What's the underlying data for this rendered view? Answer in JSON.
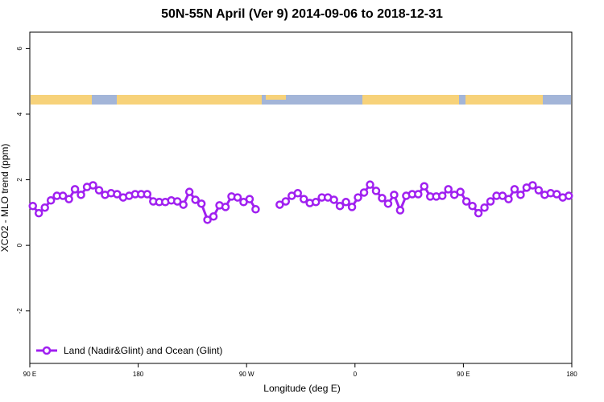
{
  "chart_data": {
    "type": "line",
    "title": "50N-55N April (Ver 9)   2014-09-06 to 2018-12-31",
    "x_label": "Longitude (deg E)",
    "y_label": "XCO2 - MLO trend (ppm)",
    "xlim": [
      90,
      540
    ],
    "ylim": [
      -3.6,
      6.5
    ],
    "xticks": [
      {
        "value": 90,
        "label": "90 E"
      },
      180,
      {
        "value": 270,
        "label": "90 W"
      },
      {
        "value": 360,
        "label": "0"
      },
      {
        "value": 450,
        "label": "90 E"
      },
      {
        "value": 540,
        "label": "180"
      }
    ],
    "yticks": [
      -2,
      0,
      2,
      4,
      6
    ],
    "legend": "bottom left",
    "x": [
      92.5,
      97.5,
      102.5,
      107.5,
      112.5,
      117.5,
      122.5,
      127.5,
      132.5,
      137.5,
      142.5,
      147.5,
      152.5,
      157.5,
      162.5,
      167.5,
      172.5,
      177.5,
      182.5,
      187.5,
      192.5,
      197.5,
      202.5,
      207.5,
      212.5,
      217.5,
      222.5,
      227.5,
      232.5,
      237.5,
      242.5,
      247.5,
      252.5,
      257.5,
      262.5,
      267.5,
      272.5,
      277.5,
      282.5,
      287.5,
      292.5,
      297.5,
      302.5,
      307.5,
      312.5,
      317.5,
      322.5,
      327.5,
      332.5,
      337.5,
      342.5,
      347.5,
      352.5,
      357.5,
      362.5,
      367.5,
      372.5,
      377.5,
      382.5,
      387.5,
      392.5,
      397.5,
      402.5,
      407.5,
      412.5,
      417.5,
      422.5,
      427.5,
      432.5,
      437.5,
      442.5,
      447.5,
      452.5,
      457.5,
      462.5,
      467.5,
      472.5,
      477.5,
      482.5,
      487.5,
      492.5,
      497.5,
      502.5,
      507.5,
      512.5,
      517.5,
      522.5,
      527.5,
      532.5,
      537.5
    ],
    "series": [
      {
        "name": "Land (Nadir&Glint) and Ocean (Glint)",
        "color": "#a020f0",
        "values": [
          1.2,
          0.98,
          1.15,
          1.37,
          1.51,
          1.51,
          1.41,
          1.71,
          1.54,
          1.78,
          1.83,
          1.68,
          1.54,
          1.59,
          1.56,
          1.46,
          1.51,
          1.56,
          1.56,
          1.56,
          1.34,
          1.32,
          1.32,
          1.37,
          1.34,
          1.24,
          1.63,
          1.39,
          1.27,
          0.78,
          0.88,
          1.22,
          1.17,
          1.49,
          1.46,
          1.32,
          1.41,
          1.1,
          null,
          null,
          null,
          1.24,
          1.34,
          1.51,
          1.59,
          1.41,
          1.29,
          1.32,
          1.46,
          1.46,
          1.39,
          1.2,
          1.32,
          1.17,
          1.46,
          1.61,
          1.85,
          1.66,
          1.44,
          1.27,
          1.54,
          1.07,
          1.51,
          1.56,
          1.56,
          1.8,
          1.49,
          1.49,
          1.51,
          1.71,
          1.54,
          1.63,
          1.34,
          1.2,
          0.98,
          1.15,
          1.34,
          1.51,
          1.51,
          1.41,
          1.71,
          1.54,
          1.76,
          1.83,
          1.68,
          1.54,
          1.59,
          1.56,
          1.46,
          1.51
        ]
      }
    ]
  }
}
